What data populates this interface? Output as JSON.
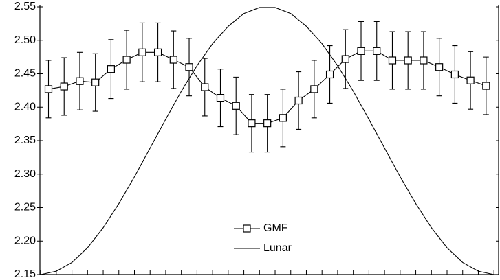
{
  "chart_data": {
    "type": "line",
    "xlim": [
      0.45,
      29.8
    ],
    "xticks": [
      0.5,
      1.5,
      2.5,
      3.5,
      4.5,
      5.5,
      6.5,
      7.5,
      8.5,
      9.5,
      10.5,
      11.5,
      12.5,
      13.5,
      14.5,
      15.5,
      16.5,
      17.5,
      18.5,
      19.5,
      20.5,
      21.5,
      22.5,
      23.5,
      24.5,
      25.5,
      26.5,
      27.5,
      28.5,
      29.5
    ],
    "ylim": [
      2.15,
      2.55
    ],
    "yticks": [
      2.15,
      {
        "value": 2.2,
        "label": "2.20"
      },
      2.25,
      {
        "value": 2.3,
        "label": "2.30"
      },
      2.35,
      {
        "value": 2.4,
        "label": "2.40"
      },
      2.45,
      {
        "value": 2.5,
        "label": "2.50"
      },
      2.55
    ],
    "series": [
      {
        "name": "GMF",
        "color": "#000000",
        "marker": "square",
        "x": [
          1,
          2,
          3,
          4,
          5,
          6,
          7,
          8,
          9,
          10,
          11,
          12,
          13,
          14,
          15,
          16,
          17,
          18,
          19,
          20,
          21,
          22,
          23,
          24,
          25,
          26,
          27,
          28,
          29
        ],
        "values": [
          2.427,
          2.431,
          2.439,
          2.437,
          2.457,
          2.471,
          2.482,
          2.482,
          2.471,
          2.46,
          2.43,
          2.414,
          2.402,
          2.376,
          2.376,
          2.384,
          2.41,
          2.427,
          2.449,
          2.472,
          2.484,
          2.484,
          2.47,
          2.47,
          2.47,
          2.46,
          2.449,
          2.44,
          2.432
        ],
        "errors": [
          0.043,
          0.043,
          0.043,
          0.043,
          0.044,
          0.044,
          0.044,
          0.044,
          0.043,
          0.043,
          0.043,
          0.043,
          0.043,
          0.043,
          0.043,
          0.043,
          0.043,
          0.043,
          0.043,
          0.044,
          0.044,
          0.044,
          0.043,
          0.043,
          0.043,
          0.043,
          0.043,
          0.043,
          0.043
        ]
      },
      {
        "name": "Lunar",
        "color": "#000000",
        "marker": "none",
        "x": [
          0.5,
          1.5,
          2.5,
          3.5,
          4.5,
          5.5,
          6.5,
          7.5,
          8.5,
          9.5,
          10.5,
          11.5,
          12.5,
          13.5,
          14.5,
          15.5,
          16.5,
          17.5,
          18.5,
          19.5,
          20.5,
          21.5,
          22.5,
          23.5,
          24.5,
          25.5,
          26.5,
          27.5,
          28.5,
          29.5
        ],
        "values": [
          2.15,
          2.155,
          2.168,
          2.19,
          2.22,
          2.256,
          2.296,
          2.339,
          2.382,
          2.424,
          2.462,
          2.495,
          2.521,
          2.54,
          2.549,
          2.549,
          2.54,
          2.521,
          2.495,
          2.462,
          2.424,
          2.382,
          2.339,
          2.296,
          2.256,
          2.22,
          2.19,
          2.168,
          2.155,
          2.15
        ]
      }
    ]
  }
}
